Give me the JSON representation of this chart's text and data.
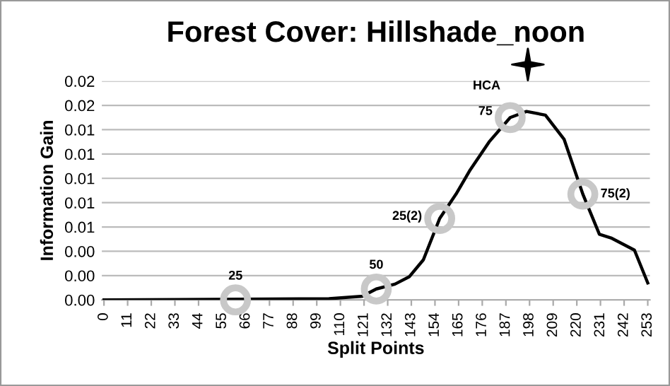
{
  "chart_data": {
    "type": "line",
    "title": "Forest Cover: Hillshade_noon",
    "xlabel": "Split Points",
    "ylabel": "Information Gain",
    "series": [
      {
        "color": "#000000",
        "marker": "none",
        "x": [
          0,
          104.7,
          120.2,
          126.7,
          135.4,
          142,
          148.6,
          156.2,
          163.8,
          170.4,
          179.2,
          189,
          196.6,
          205.4,
          214.1,
          222.8,
          230.5,
          235.9,
          246.8,
          253
        ],
        "values": [
          0,
          0.0001,
          0.0003,
          0.0009,
          0.0013,
          0.0019,
          0.0033,
          0.0067,
          0.0087,
          0.0107,
          0.013,
          0.015,
          0.0155,
          0.0152,
          0.0132,
          0.0087,
          0.0054,
          0.0051,
          0.0041,
          0.0014
        ]
      },
      {
        "type": "scatter",
        "color": "#c8c8c8",
        "marker": "circle",
        "x": [
          61.2,
          126.7,
          156.2,
          189,
          222.8
        ],
        "values": [
          0,
          0.0009,
          0.0067,
          0.015,
          0.0087
        ]
      }
    ],
    "annotations": [
      {
        "text": "25",
        "x": 61.2,
        "y": 0
      },
      {
        "text": "50",
        "x": 126.7,
        "y": 0.0009
      },
      {
        "text": "25(2)",
        "x": 156.2,
        "y": 0.0067
      },
      {
        "text": "75",
        "x": 189,
        "y": 0.015
      },
      {
        "text": "75(2)",
        "x": 222.8,
        "y": 0.0087
      },
      "HCA"
    ],
    "xlim": [
      -1,
      254
    ],
    "ylim": [
      0,
      0.018
    ],
    "xticks": [
      0,
      11,
      22,
      33,
      44,
      55,
      66,
      77,
      88,
      99,
      110,
      121,
      132,
      143,
      154,
      165,
      176,
      187,
      198,
      209,
      220,
      231,
      242,
      253
    ],
    "yticks": [
      {
        "value": 0,
        "label": "0.00"
      },
      {
        "value": 0.002,
        "label": "0.00"
      },
      {
        "value": 0.004,
        "label": "0.00"
      },
      {
        "value": 0.006,
        "label": "0.01"
      },
      {
        "value": 0.008,
        "label": "0.01"
      },
      {
        "value": 0.01,
        "label": "0.01"
      },
      {
        "value": 0.012,
        "label": "0.01"
      },
      {
        "value": 0.014,
        "label": "0.01"
      },
      {
        "value": 0.016,
        "label": "0.02"
      },
      {
        "value": 0.018,
        "label": "0.02"
      }
    ],
    "grid": "y"
  }
}
